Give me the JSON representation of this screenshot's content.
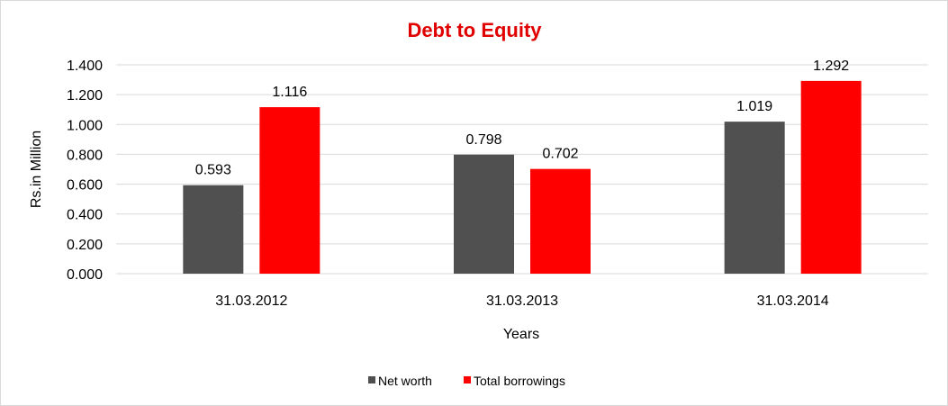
{
  "chart_data": {
    "type": "bar",
    "title": "Debt to Equity",
    "xlabel": "Years",
    "ylabel": "Rs.in Million",
    "categories": [
      "31.03.2012",
      "31.03.2013",
      "31.03.2014"
    ],
    "series": [
      {
        "name": "Net worth",
        "values": [
          0.593,
          0.798,
          1.019
        ],
        "labels": [
          "0.593",
          "0.798",
          "1.019"
        ],
        "color": "#505050"
      },
      {
        "name": "Total borrowings",
        "values": [
          1.116,
          0.702,
          1.292
        ],
        "labels": [
          "1.116",
          "0.702",
          "1.292"
        ],
        "color": "#ff0000"
      }
    ],
    "ylim": [
      0,
      1.4
    ],
    "yticks": [
      0,
      0.2,
      0.4,
      0.6,
      0.8,
      1.0,
      1.2,
      1.4
    ],
    "ytick_labels": [
      "0.000",
      "0.200",
      "0.400",
      "0.600",
      "0.800",
      "1.000",
      "1.200",
      "1.400"
    ],
    "grid": true,
    "legend_position": "bottom",
    "title_color": "#e00000",
    "gridline_color": "#d9d9d9"
  }
}
